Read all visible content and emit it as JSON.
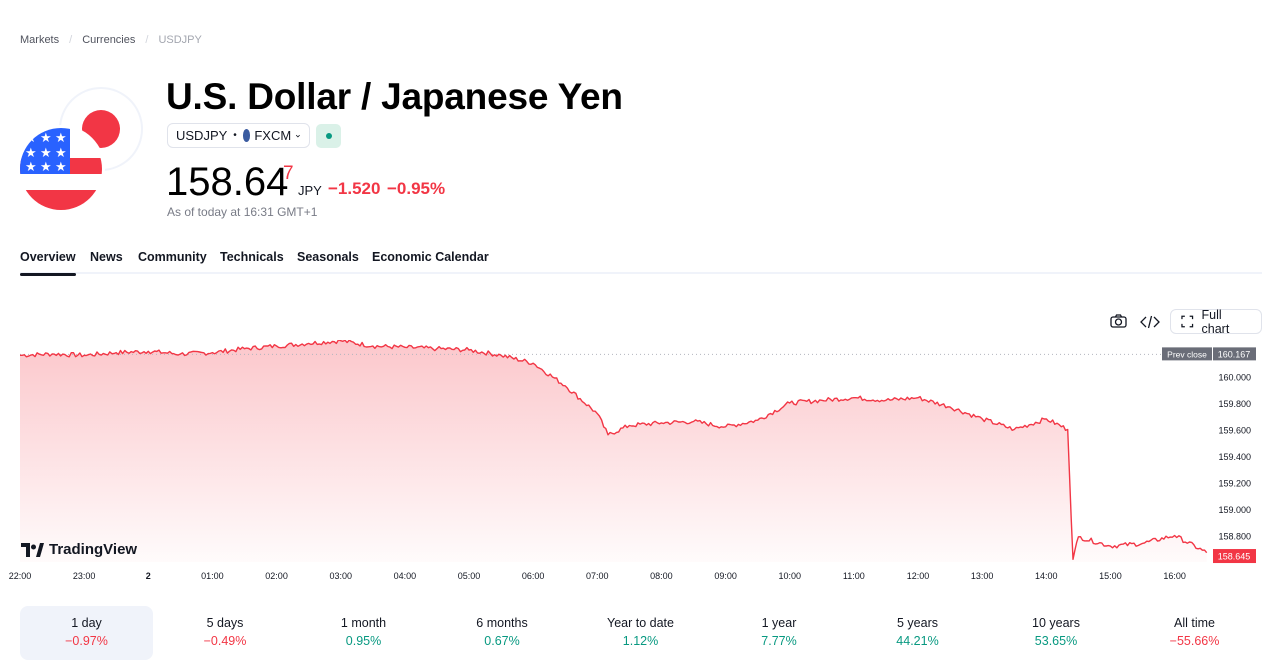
{
  "breadcrumb": {
    "markets": "Markets",
    "currencies": "Currencies",
    "current": "USDJPY"
  },
  "header": {
    "title": "U.S. Dollar / Japanese Yen",
    "symbol": "USDJPY",
    "exchange": "FXCM",
    "market_status": "open",
    "price_main": "158.64",
    "price_last_digit": "7",
    "currency": "JPY",
    "change": "−1.520",
    "change_pct": "−0.95%",
    "as_of": "As of today at 16:31 GMT+1"
  },
  "tabs": [
    "Overview",
    "News",
    "Community",
    "Technicals",
    "Seasonals",
    "Economic Calendar"
  ],
  "toolbar": {
    "snapshot_icon": "camera-icon",
    "embed_icon": "code-icon",
    "full_chart_label": "Full chart"
  },
  "colors": {
    "up": "#089981",
    "down": "#f23645",
    "line": "#f23645"
  },
  "chart_data": {
    "type": "area",
    "x_ticks": [
      "22:00",
      "23:00",
      "2",
      "01:00",
      "02:00",
      "03:00",
      "04:00",
      "05:00",
      "06:00",
      "07:00",
      "08:00",
      "09:00",
      "10:00",
      "11:00",
      "12:00",
      "13:00",
      "14:00",
      "15:00",
      "16:00"
    ],
    "y_ticks": [
      "160.000",
      "159.800",
      "159.600",
      "159.400",
      "159.200",
      "159.000",
      "158.800"
    ],
    "ylim": [
      158.6,
      160.2
    ],
    "prev_close_label": "Prev close",
    "prev_close": "160.167",
    "last_label": "158.645",
    "series": [
      {
        "x": [
          "22:00",
          "22:30",
          "23:00",
          "23:30",
          "00:00",
          "00:30",
          "01:00",
          "01:30",
          "02:00",
          "02:30",
          "03:00",
          "03:30",
          "04:00",
          "04:30",
          "05:00",
          "05:30",
          "06:00",
          "06:30",
          "07:00",
          "07:10",
          "07:30",
          "08:00",
          "08:30",
          "09:00",
          "09:30",
          "10:00",
          "10:30",
          "11:00",
          "11:30",
          "12:00",
          "12:30",
          "13:00",
          "13:30",
          "14:00",
          "14:20",
          "14:25",
          "14:30",
          "15:00",
          "15:30",
          "16:00",
          "16:30"
        ],
        "values": [
          160.16,
          160.17,
          160.16,
          160.18,
          160.19,
          160.17,
          160.18,
          160.21,
          160.23,
          160.25,
          160.27,
          160.23,
          160.22,
          160.21,
          160.2,
          160.16,
          160.1,
          159.93,
          159.72,
          159.56,
          159.63,
          159.65,
          159.66,
          159.62,
          159.67,
          159.8,
          159.82,
          159.84,
          159.82,
          159.84,
          159.77,
          159.68,
          159.6,
          159.68,
          159.6,
          158.62,
          158.79,
          158.72,
          158.74,
          158.8,
          158.67
        ]
      }
    ]
  },
  "periods": [
    {
      "label": "1 day",
      "value": "−0.97%",
      "dir": "neg"
    },
    {
      "label": "5 days",
      "value": "−0.49%",
      "dir": "neg"
    },
    {
      "label": "1 month",
      "value": "0.95%",
      "dir": "pos"
    },
    {
      "label": "6 months",
      "value": "0.67%",
      "dir": "pos"
    },
    {
      "label": "Year to date",
      "value": "1.12%",
      "dir": "pos"
    },
    {
      "label": "1 year",
      "value": "7.77%",
      "dir": "pos"
    },
    {
      "label": "5 years",
      "value": "44.21%",
      "dir": "pos"
    },
    {
      "label": "10 years",
      "value": "53.65%",
      "dir": "pos"
    },
    {
      "label": "All time",
      "value": "−55.66%",
      "dir": "neg"
    }
  ],
  "brand": "TradingView"
}
